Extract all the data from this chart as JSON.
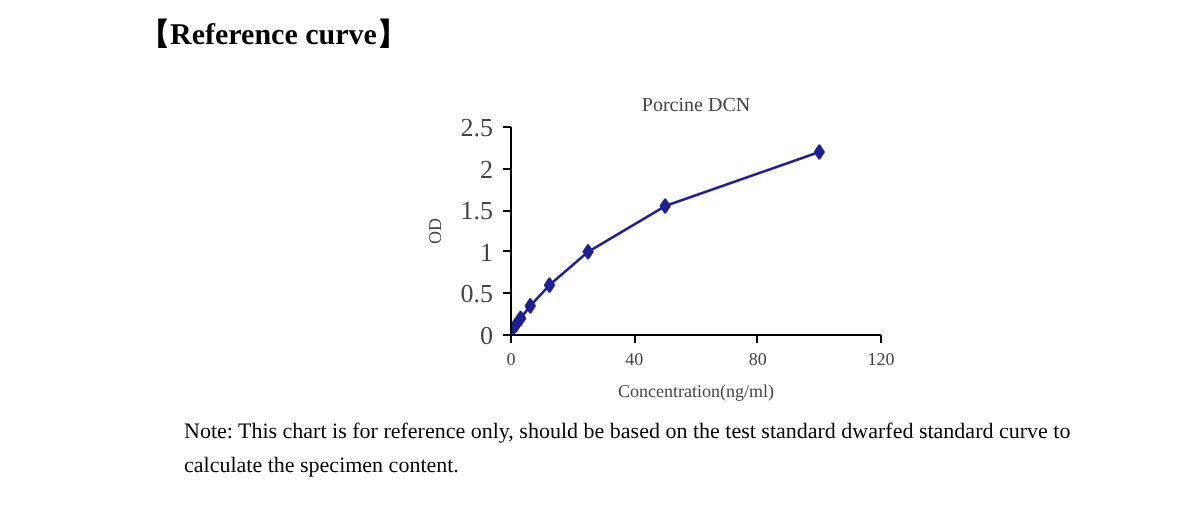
{
  "chart_data": {
    "type": "line",
    "title": "Porcine DCN",
    "subtitle": "【Reference curve】",
    "xlabel": "Concentration(ng/ml)",
    "ylabel": "OD",
    "x": [
      0,
      1.56,
      3.12,
      6.25,
      12.5,
      25,
      50,
      100
    ],
    "series": [
      {
        "color": "#1f1f8f",
        "values": [
          0.05,
          0.12,
          0.2,
          0.35,
          0.6,
          1.0,
          1.55,
          2.2
        ]
      }
    ],
    "xlim": [
      0,
      120
    ],
    "xticks": [
      0,
      40,
      80,
      120
    ],
    "ylim": [
      0,
      2.5
    ],
    "yticks": [
      0,
      0.5,
      1,
      1.5,
      2,
      2.5
    ],
    "marker": "diamond",
    "line_style": "solid",
    "annotations": [
      "Note: This chart is for reference only, should be based on the test standard dwarfed standard curve to calculate the specimen content."
    ]
  }
}
